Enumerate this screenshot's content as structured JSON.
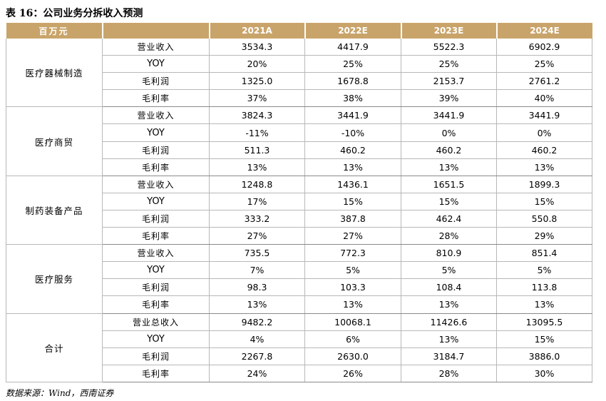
{
  "title": "表 16：公司业务分拆收入预测",
  "header": {
    "unit": "百万元",
    "years": [
      "2021A",
      "2022E",
      "2023E",
      "2024E"
    ]
  },
  "segments": [
    {
      "name": "医疗器械制造",
      "rows": [
        {
          "metric": "营业收入",
          "values": [
            "3534.3",
            "4417.9",
            "5522.3",
            "6902.9"
          ]
        },
        {
          "metric": "YOY",
          "values": [
            "20%",
            "25%",
            "25%",
            "25%"
          ]
        },
        {
          "metric": "毛利润",
          "values": [
            "1325.0",
            "1678.8",
            "2153.7",
            "2761.2"
          ]
        },
        {
          "metric": "毛利率",
          "values": [
            "37%",
            "38%",
            "39%",
            "40%"
          ]
        }
      ]
    },
    {
      "name": "医疗商贸",
      "rows": [
        {
          "metric": "营业收入",
          "values": [
            "3824.3",
            "3441.9",
            "3441.9",
            "3441.9"
          ]
        },
        {
          "metric": "YOY",
          "values": [
            "-11%",
            "-10%",
            "0%",
            "0%"
          ]
        },
        {
          "metric": "毛利润",
          "values": [
            "511.3",
            "460.2",
            "460.2",
            "460.2"
          ]
        },
        {
          "metric": "毛利率",
          "values": [
            "13%",
            "13%",
            "13%",
            "13%"
          ]
        }
      ]
    },
    {
      "name": "制药装备产品",
      "rows": [
        {
          "metric": "营业收入",
          "values": [
            "1248.8",
            "1436.1",
            "1651.5",
            "1899.3"
          ]
        },
        {
          "metric": "YOY",
          "values": [
            "17%",
            "15%",
            "15%",
            "15%"
          ]
        },
        {
          "metric": "毛利润",
          "values": [
            "333.2",
            "387.8",
            "462.4",
            "550.8"
          ]
        },
        {
          "metric": "毛利率",
          "values": [
            "27%",
            "27%",
            "28%",
            "29%"
          ]
        }
      ]
    },
    {
      "name": "医疗服务",
      "rows": [
        {
          "metric": "营业收入",
          "values": [
            "735.5",
            "772.3",
            "810.9",
            "851.4"
          ]
        },
        {
          "metric": "YOY",
          "values": [
            "7%",
            "5%",
            "5%",
            "5%"
          ]
        },
        {
          "metric": "毛利润",
          "values": [
            "98.3",
            "103.3",
            "108.4",
            "113.8"
          ]
        },
        {
          "metric": "毛利率",
          "values": [
            "13%",
            "13%",
            "13%",
            "13%"
          ]
        }
      ]
    },
    {
      "name": "合计",
      "rows": [
        {
          "metric": "营业总收入",
          "values": [
            "9482.2",
            "10068.1",
            "11426.6",
            "13095.5"
          ]
        },
        {
          "metric": "YOY",
          "values": [
            "4%",
            "6%",
            "13%",
            "15%"
          ]
        },
        {
          "metric": "毛利润",
          "values": [
            "2267.8",
            "2630.0",
            "3184.7",
            "3886.0"
          ]
        },
        {
          "metric": "毛利率",
          "values": [
            "24%",
            "26%",
            "28%",
            "30%"
          ]
        }
      ]
    }
  ],
  "source": "数据来源：Wind，西南证券"
}
